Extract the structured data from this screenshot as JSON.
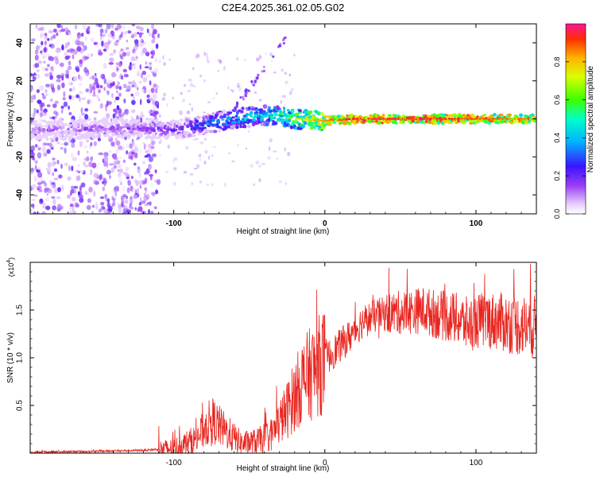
{
  "title": "C2E4.2025.361.02.05.G02",
  "chart_data": [
    {
      "type": "heatmap",
      "title": "C2E4.2025.361.02.05.G02",
      "xlabel": "Height of straight line (km)",
      "ylabel": "Frequency (Hz)",
      "xlim": [
        -195,
        140
      ],
      "ylim": [
        -50,
        50
      ],
      "x_ticks": [
        -100,
        0,
        100
      ],
      "x_tick_labels": [
        "-100",
        "0",
        "100"
      ],
      "y_ticks": [
        -40,
        -20,
        0,
        20,
        40
      ],
      "y_tick_labels": [
        "-40",
        "-20",
        "0",
        "20",
        "40"
      ],
      "colorbar": {
        "label": "Normalized spectral amplitude",
        "range": [
          0.0,
          1.0
        ],
        "ticks": [
          0.0,
          0.2,
          0.4,
          0.6,
          0.8
        ],
        "tick_labels": [
          "0.0",
          "0.2",
          "0.4",
          "0.6",
          "0.8"
        ]
      },
      "signal_trace": {
        "description_points_x_km": [
          -195,
          -150,
          -120,
          -100,
          -80,
          -60,
          -40,
          -20,
          0,
          20,
          60,
          100,
          140
        ],
        "center_freq_hz": [
          -6,
          -5,
          -5,
          -6,
          -3,
          0,
          2,
          0,
          -1,
          0,
          0,
          0,
          0
        ],
        "amplitude": [
          0.15,
          0.18,
          0.2,
          0.25,
          0.35,
          0.45,
          0.5,
          0.7,
          0.85,
          0.95,
          0.95,
          0.9,
          0.85
        ]
      }
    },
    {
      "type": "line",
      "xlabel": "Height of straight line (km)",
      "ylabel": "SNR (10 * v/v)",
      "y_scale_label": "(x10",
      "y_scale_exp": "4",
      "y_scale_close": ")",
      "xlim": [
        -195,
        140
      ],
      "ylim": [
        0,
        2.0
      ],
      "x_ticks": [
        -100,
        0,
        100
      ],
      "x_tick_labels": [
        "-100",
        "0",
        "100"
      ],
      "y_ticks": [
        0.5,
        1.0,
        1.5
      ],
      "y_tick_labels": [
        "0.5",
        "1.0",
        "1.5"
      ],
      "series": [
        {
          "name": "SNR",
          "color": "#e8251f",
          "x": [
            -195,
            -150,
            -120,
            -100,
            -85,
            -75,
            -65,
            -55,
            -45,
            -35,
            -25,
            -15,
            -5,
            5,
            15,
            25,
            35,
            45,
            55,
            65,
            75,
            85,
            95,
            105,
            115,
            125,
            140
          ],
          "y": [
            0.01,
            0.02,
            0.03,
            0.05,
            0.15,
            0.35,
            0.22,
            0.1,
            0.12,
            0.2,
            0.45,
            0.75,
            0.9,
            1.05,
            1.2,
            1.38,
            1.45,
            1.47,
            1.48,
            1.5,
            1.45,
            1.42,
            1.35,
            1.4,
            1.38,
            1.35,
            1.32
          ]
        }
      ]
    }
  ]
}
